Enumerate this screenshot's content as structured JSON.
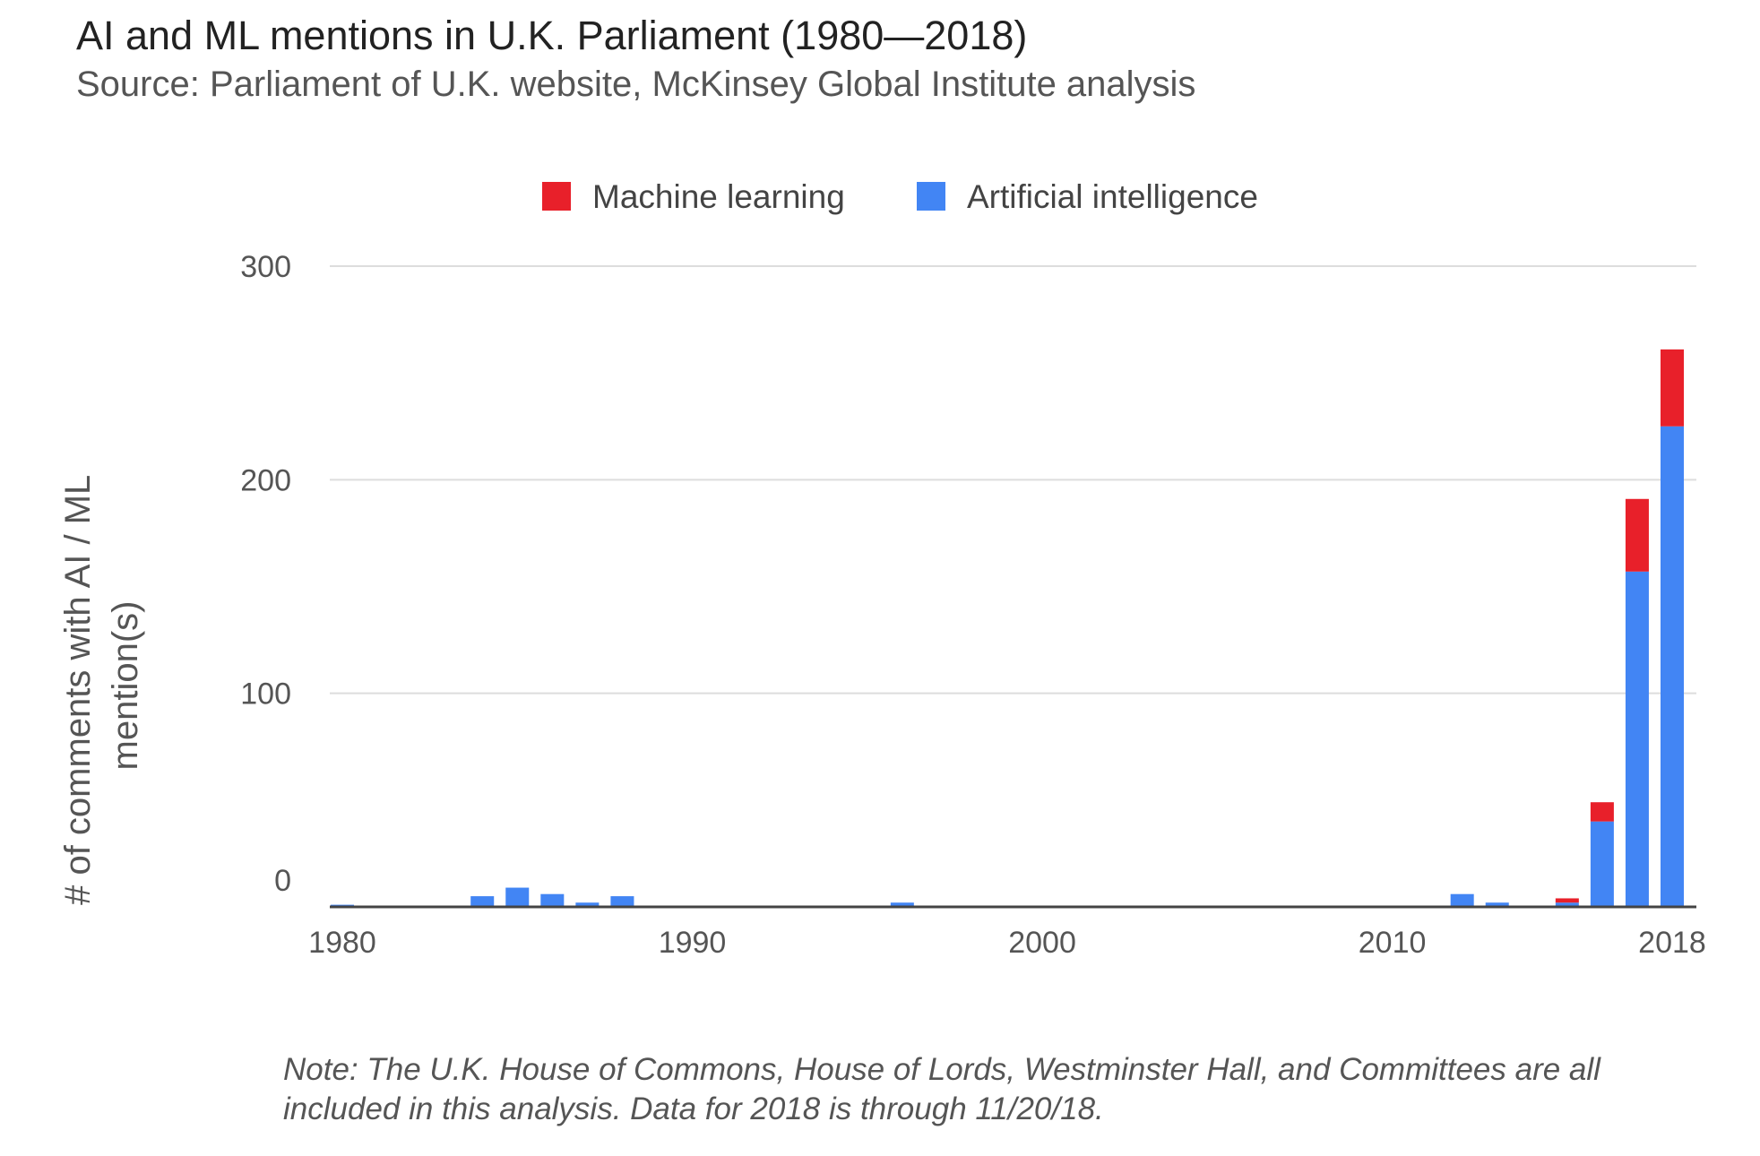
{
  "header": {
    "title": "AI and ML mentions in U.K. Parliament (1980—2018)",
    "subtitle": "Source: Parliament of U.K. website, McKinsey Global Institute analysis"
  },
  "footer": {
    "note": "Note: The U.K. House of Commons, House of Lords, Westminster Hall, and Committees are all included in this analysis. Data for 2018 is through 11/20/18."
  },
  "chart_data": {
    "type": "bar",
    "stacked": true,
    "ylabel_lines": [
      "# of comments with AI / ML",
      "mention(s)"
    ],
    "ylim": [
      0,
      300
    ],
    "yticks": [
      0,
      100,
      200,
      300
    ],
    "xticks": [
      1980,
      1990,
      2000,
      2010,
      2018
    ],
    "grid": true,
    "legend_position": "top-center",
    "categories": [
      1980,
      1981,
      1982,
      1983,
      1984,
      1985,
      1986,
      1987,
      1988,
      1989,
      1990,
      1991,
      1992,
      1993,
      1994,
      1995,
      1996,
      1997,
      1998,
      1999,
      2000,
      2001,
      2002,
      2003,
      2004,
      2005,
      2006,
      2007,
      2008,
      2009,
      2010,
      2011,
      2012,
      2013,
      2014,
      2015,
      2016,
      2017,
      2018
    ],
    "series": [
      {
        "name": "Artificial intelligence",
        "color": "#4285f4",
        "values": [
          1,
          0,
          0,
          0,
          5,
          9,
          6,
          2,
          5,
          0,
          0,
          0,
          0,
          0,
          0,
          0,
          2,
          0,
          0,
          0,
          0,
          0,
          0,
          0,
          0,
          0,
          0,
          0,
          0,
          0,
          0,
          0,
          6,
          2,
          0,
          2,
          40,
          157,
          225
        ]
      },
      {
        "name": "Machine learning",
        "color": "#e8202a",
        "values": [
          0,
          0,
          0,
          0,
          0,
          0,
          0,
          0,
          0,
          0,
          0,
          0,
          0,
          0,
          0,
          0,
          0,
          0,
          0,
          0,
          0,
          0,
          0,
          0,
          0,
          0,
          0,
          0,
          0,
          0,
          0,
          0,
          0,
          0,
          0,
          2,
          9,
          34,
          36
        ]
      }
    ]
  }
}
